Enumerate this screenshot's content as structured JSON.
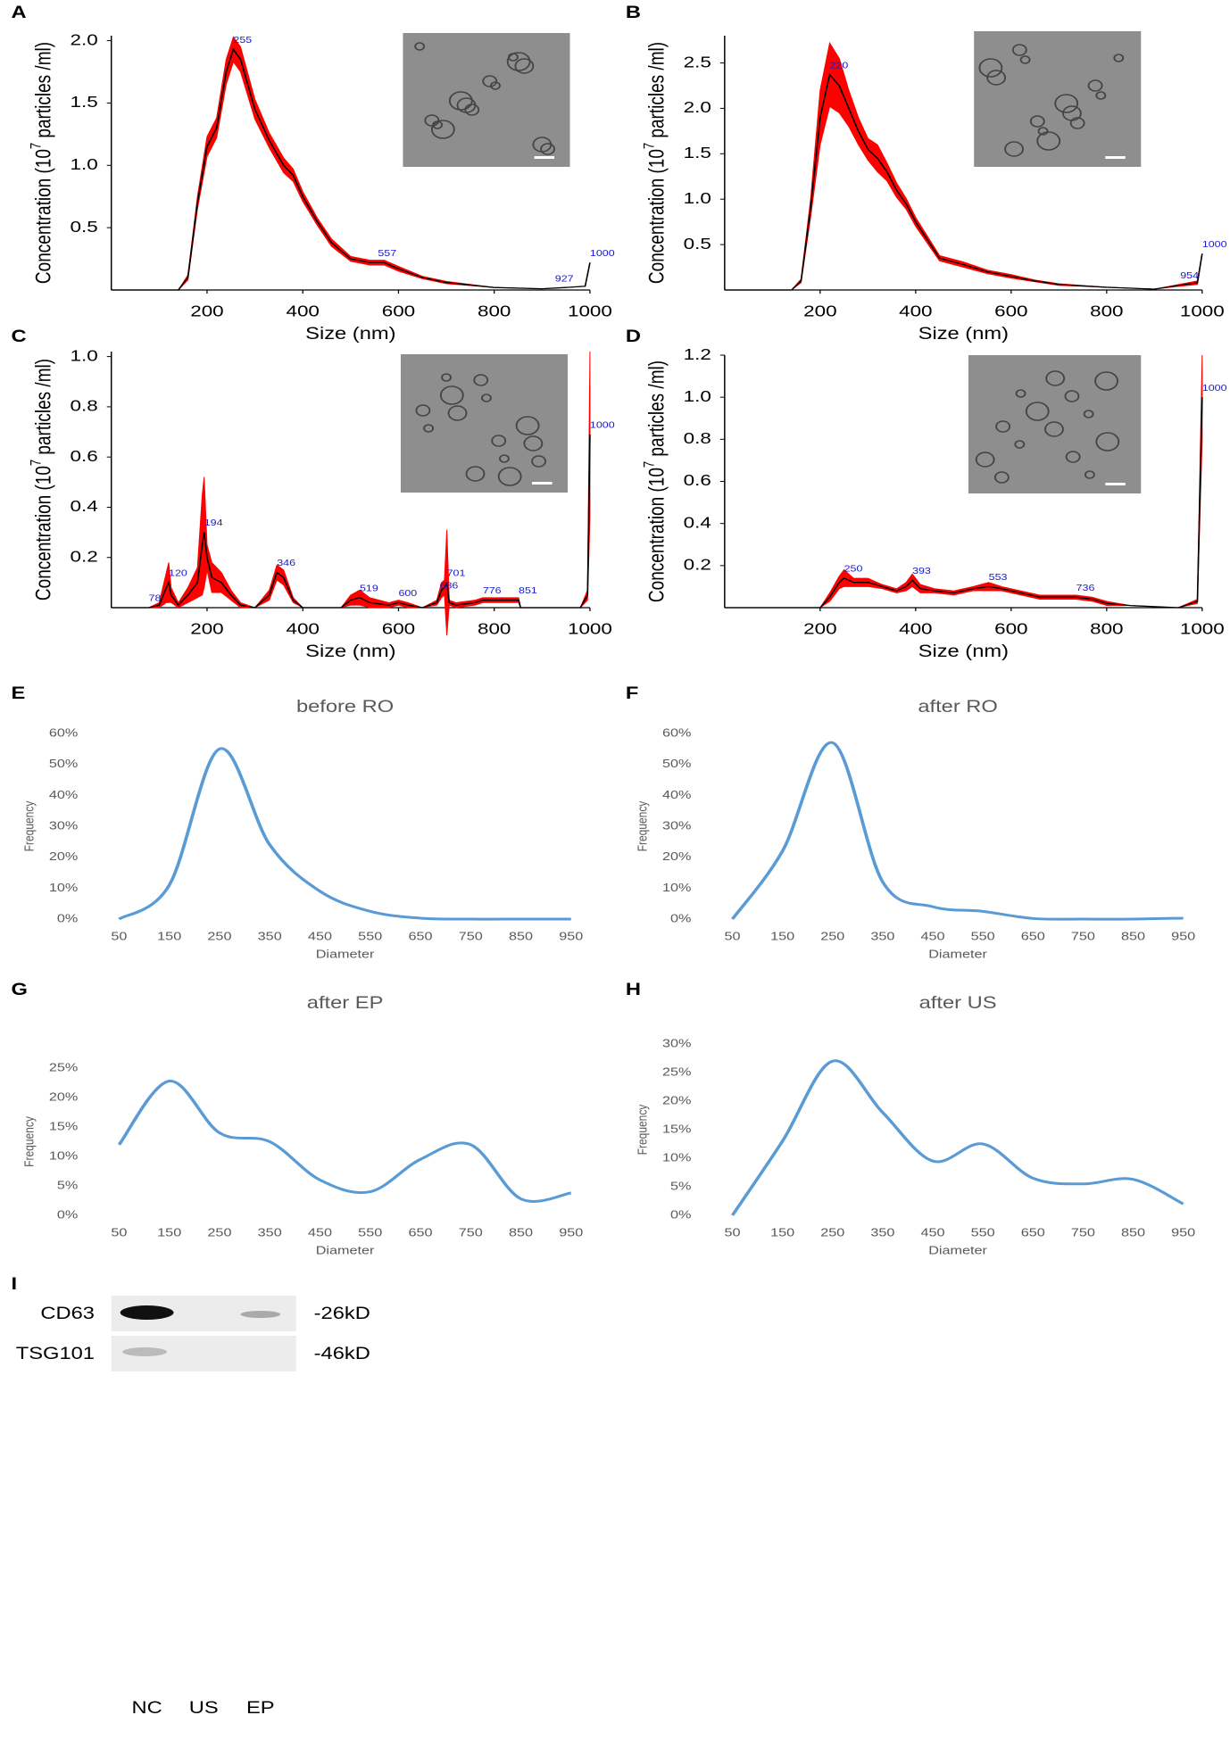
{
  "chart_data": [
    {
      "type": "line",
      "panel": "A",
      "xlabel": "Size (nm)",
      "ylabel_parts": [
        "Concentration (10",
        "7",
        " particles /ml)"
      ],
      "axis_lines": true,
      "xlim": [
        0,
        1000
      ],
      "ylim": [
        0,
        2.04
      ],
      "xticks": [
        200,
        400,
        600,
        800,
        1000
      ],
      "yticks": [
        0.5,
        {
          "value": 1,
          "label": "1.0"
        },
        1.5,
        {
          "value": 2,
          "label": "2.0"
        }
      ],
      "x": [
        0,
        140,
        160,
        180,
        200,
        220,
        240,
        255,
        270,
        300,
        330,
        360,
        380,
        400,
        430,
        460,
        500,
        540,
        570,
        600,
        650,
        700,
        800,
        900,
        950,
        990,
        1000
      ],
      "series": [
        {
          "color": "#000000",
          "error_color": "#ff0000",
          "values": [
            0,
            0,
            0.1,
            0.7,
            1.15,
            1.3,
            1.75,
            1.93,
            1.85,
            1.45,
            1.2,
            1.0,
            0.92,
            0.75,
            0.55,
            0.38,
            0.25,
            0.22,
            0.22,
            0.17,
            0.1,
            0.06,
            0.02,
            0.01,
            0.02,
            0.03,
            0.22
          ],
          "error": [
            0,
            0,
            0.02,
            0.05,
            0.08,
            0.08,
            0.1,
            0.1,
            0.1,
            0.08,
            0.06,
            0.06,
            0.05,
            0.04,
            0.03,
            0.03,
            0.02,
            0.02,
            0.02,
            0.02,
            0.01,
            0.01,
            0,
            0,
            0,
            0,
            0
          ]
        }
      ],
      "peak_labels": [
        255,
        557,
        927,
        1000
      ],
      "peak_color": "#1a1acc"
    },
    {
      "type": "line",
      "panel": "B",
      "xlabel": "Size (nm)",
      "ylabel_parts": [
        "Concentration (10",
        "7",
        " particles /ml)"
      ],
      "axis_lines": true,
      "xlim": [
        0,
        1000
      ],
      "ylim": [
        0,
        2.8
      ],
      "xticks": [
        200,
        400,
        600,
        800,
        1000
      ],
      "yticks": [
        0.5,
        {
          "value": 1,
          "label": "1.0"
        },
        1.5,
        {
          "value": 2,
          "label": "2.0"
        },
        2.5
      ],
      "x": [
        0,
        140,
        160,
        180,
        200,
        220,
        240,
        260,
        280,
        300,
        320,
        340,
        360,
        380,
        400,
        450,
        500,
        550,
        600,
        650,
        700,
        800,
        900,
        950,
        990,
        1000
      ],
      "series": [
        {
          "color": "#000000",
          "error_color": "#ff0000",
          "values": [
            0,
            0,
            0.1,
            0.9,
            1.9,
            2.37,
            2.25,
            2.0,
            1.75,
            1.55,
            1.45,
            1.3,
            1.1,
            0.95,
            0.75,
            0.35,
            0.28,
            0.2,
            0.15,
            0.1,
            0.06,
            0.03,
            0.01,
            0.05,
            0.08,
            0.4
          ],
          "error": [
            0,
            0,
            0.02,
            0.1,
            0.3,
            0.35,
            0.3,
            0.2,
            0.15,
            0.12,
            0.15,
            0.1,
            0.08,
            0.06,
            0.05,
            0.03,
            0.03,
            0.02,
            0.02,
            0.01,
            0.01,
            0,
            0,
            0.01,
            0.02,
            0
          ]
        }
      ],
      "peak_labels": [
        220,
        954,
        1000
      ],
      "peak_color": "#1a1acc"
    },
    {
      "type": "line",
      "panel": "C",
      "xlabel": "Size (nm)",
      "ylabel_parts": [
        "Concentration (10",
        "7",
        " particles /ml)"
      ],
      "axis_lines": true,
      "xlim": [
        0,
        1000
      ],
      "ylim": [
        0,
        1.02
      ],
      "xticks": [
        200,
        400,
        600,
        800,
        1000
      ],
      "yticks": [
        0.2,
        0.4,
        0.6,
        0.8,
        {
          "value": 1,
          "label": "1.0"
        }
      ],
      "x": [
        0,
        78,
        100,
        115,
        120,
        125,
        140,
        160,
        180,
        190,
        194,
        200,
        210,
        230,
        250,
        270,
        300,
        330,
        346,
        360,
        380,
        400,
        480,
        500,
        519,
        540,
        580,
        600,
        620,
        650,
        680,
        690,
        696,
        701,
        706,
        720,
        760,
        776,
        800,
        840,
        851,
        855,
        980,
        995,
        1000
      ],
      "series": [
        {
          "color": "#000000",
          "error_color": "#ff0000",
          "values": [
            0,
            0,
            0.01,
            0.08,
            0.1,
            0.05,
            0.01,
            0.05,
            0.1,
            0.25,
            0.3,
            0.2,
            0.12,
            0.1,
            0.05,
            0.01,
            0,
            0.05,
            0.14,
            0.12,
            0.03,
            0,
            0,
            0.03,
            0.04,
            0.02,
            0.01,
            0.02,
            0.01,
            0,
            0.02,
            0.07,
            0.08,
            0.1,
            0.02,
            0.01,
            0.02,
            0.03,
            0.03,
            0.03,
            0.03,
            0,
            0,
            0.05,
            0.69
          ],
          "error": [
            0,
            0,
            0.01,
            0.06,
            0.08,
            0.03,
            0.01,
            0.03,
            0.06,
            0.2,
            0.22,
            0.05,
            0.06,
            0.04,
            0.02,
            0.01,
            0,
            0.02,
            0.03,
            0.03,
            0.01,
            0,
            0,
            0.02,
            0.03,
            0.02,
            0.01,
            0.01,
            0.01,
            0,
            0.01,
            0.03,
            0.03,
            0.21,
            0.01,
            0.01,
            0.01,
            0.01,
            0.01,
            0.01,
            0.01,
            0,
            0,
            0.02,
            0.33
          ]
        }
      ],
      "peak_labels": [
        78,
        120,
        194,
        346,
        519,
        600,
        686,
        701,
        776,
        851,
        1000
      ],
      "peak_color": "#1a1acc"
    },
    {
      "type": "line",
      "panel": "D",
      "xlabel": "Size (nm)",
      "ylabel_parts": [
        "Concentration (10",
        "7",
        " particles /ml)"
      ],
      "axis_lines": true,
      "xlim": [
        0,
        1000
      ],
      "ylim": [
        0,
        1.2
      ],
      "xticks": [
        200,
        400,
        600,
        800,
        1000
      ],
      "yticks": [
        0.2,
        0.4,
        0.6,
        0.8,
        {
          "value": 1,
          "label": "1.0"
        },
        1.2
      ],
      "x": [
        0,
        200,
        220,
        240,
        250,
        270,
        300,
        330,
        360,
        380,
        393,
        410,
        440,
        480,
        520,
        553,
        580,
        620,
        660,
        700,
        736,
        770,
        800,
        850,
        950,
        990,
        1000
      ],
      "series": [
        {
          "color": "#000000",
          "error_color": "#ff0000",
          "values": [
            0,
            0,
            0.05,
            0.12,
            0.14,
            0.12,
            0.12,
            0.1,
            0.08,
            0.1,
            0.13,
            0.09,
            0.08,
            0.07,
            0.09,
            0.1,
            0.09,
            0.07,
            0.05,
            0.05,
            0.05,
            0.04,
            0.02,
            0.01,
            0,
            0.03,
            1.0
          ],
          "error": [
            0,
            0,
            0.02,
            0.03,
            0.04,
            0.02,
            0.02,
            0.01,
            0.01,
            0.02,
            0.03,
            0.02,
            0.01,
            0.01,
            0.01,
            0.02,
            0.01,
            0.01,
            0.01,
            0.01,
            0.01,
            0.01,
            0.01,
            0,
            0,
            0.01,
            0.2
          ]
        }
      ],
      "peak_labels": [
        250,
        393,
        553,
        736,
        1000
      ],
      "peak_color": "#1a1acc"
    },
    {
      "type": "line",
      "panel": "E",
      "title": "before RO",
      "xlabel": "Diameter",
      "ylabel": "Frequency",
      "axis_lines": false,
      "smooth": true,
      "xlim": [
        50,
        950
      ],
      "ylim": [
        0,
        60
      ],
      "xticks": [
        50,
        150,
        250,
        350,
        450,
        550,
        650,
        750,
        850,
        950
      ],
      "yticks": [
        {
          "value": 0,
          "label": "0%"
        },
        {
          "value": 10,
          "label": "10%"
        },
        {
          "value": 20,
          "label": "20%"
        },
        {
          "value": 30,
          "label": "30%"
        },
        {
          "value": 40,
          "label": "40%"
        },
        {
          "value": 50,
          "label": "50%"
        },
        {
          "value": 60,
          "label": "60%"
        }
      ],
      "x": [
        50,
        150,
        250,
        350,
        450,
        550,
        650,
        750,
        850,
        950
      ],
      "series": [
        {
          "color": "#5b9bd5",
          "values": [
            0,
            11,
            55,
            24,
            9,
            2.5,
            0.3,
            0,
            0,
            0
          ]
        }
      ]
    },
    {
      "type": "line",
      "panel": "F",
      "title": "after RO",
      "xlabel": "Diameter",
      "ylabel": "Frequency",
      "axis_lines": false,
      "smooth": true,
      "xlim": [
        50,
        950
      ],
      "ylim": [
        0,
        60
      ],
      "xticks": [
        50,
        150,
        250,
        350,
        450,
        550,
        650,
        750,
        850,
        950
      ],
      "yticks": [
        {
          "value": 0,
          "label": "0%"
        },
        {
          "value": 10,
          "label": "10%"
        },
        {
          "value": 20,
          "label": "20%"
        },
        {
          "value": 30,
          "label": "30%"
        },
        {
          "value": 40,
          "label": "40%"
        },
        {
          "value": 50,
          "label": "50%"
        },
        {
          "value": 60,
          "label": "60%"
        }
      ],
      "x": [
        50,
        150,
        250,
        350,
        450,
        550,
        650,
        750,
        850,
        950
      ],
      "series": [
        {
          "color": "#5b9bd5",
          "values": [
            0,
            22,
            57,
            12,
            4,
            2.5,
            0.2,
            0,
            0,
            0.3
          ]
        }
      ]
    },
    {
      "type": "line",
      "panel": "G",
      "title": "after EP",
      "xlabel": "Diameter",
      "ylabel": "Frequency",
      "axis_lines": false,
      "smooth": true,
      "xlim": [
        50,
        950
      ],
      "ylim": [
        0,
        25
      ],
      "xticks": [
        50,
        150,
        250,
        350,
        450,
        550,
        650,
        750,
        850,
        950
      ],
      "yticks": [
        {
          "value": 0,
          "label": "0%"
        },
        {
          "value": 5,
          "label": "5%"
        },
        {
          "value": 10,
          "label": "10%"
        },
        {
          "value": 15,
          "label": "15%"
        },
        {
          "value": 20,
          "label": "20%"
        },
        {
          "value": 25,
          "label": "25%"
        }
      ],
      "x": [
        50,
        150,
        250,
        350,
        450,
        550,
        650,
        750,
        850,
        950
      ],
      "series": [
        {
          "color": "#5b9bd5",
          "values": [
            12,
            22.8,
            14,
            12.5,
            6,
            4,
            9.5,
            12,
            2.8,
            3.8
          ]
        }
      ]
    },
    {
      "type": "line",
      "panel": "H",
      "title": "after US",
      "xlabel": "Diameter",
      "ylabel": "Frequency",
      "axis_lines": false,
      "smooth": true,
      "xlim": [
        50,
        950
      ],
      "ylim": [
        0,
        30
      ],
      "xticks": [
        50,
        150,
        250,
        350,
        450,
        550,
        650,
        750,
        850,
        950
      ],
      "yticks": [
        {
          "value": 0,
          "label": "0%"
        },
        {
          "value": 5,
          "label": "5%"
        },
        {
          "value": 10,
          "label": "10%"
        },
        {
          "value": 15,
          "label": "15%"
        },
        {
          "value": 20,
          "label": "20%"
        },
        {
          "value": 25,
          "label": "25%"
        },
        {
          "value": 30,
          "label": "30%"
        }
      ],
      "x": [
        50,
        150,
        250,
        350,
        450,
        550,
        650,
        750,
        850,
        950
      ],
      "series": [
        {
          "color": "#5b9bd5",
          "values": [
            0,
            13,
            27,
            18,
            9.5,
            12.5,
            6.5,
            5.5,
            6.3,
            2
          ]
        }
      ]
    }
  ],
  "blot": {
    "panel": "I",
    "rows": [
      {
        "label": "CD63",
        "size": "-26kD"
      },
      {
        "label": "TSG101",
        "size": "-46kD"
      }
    ],
    "lanes": [
      "NC",
      "US",
      "EP"
    ]
  }
}
